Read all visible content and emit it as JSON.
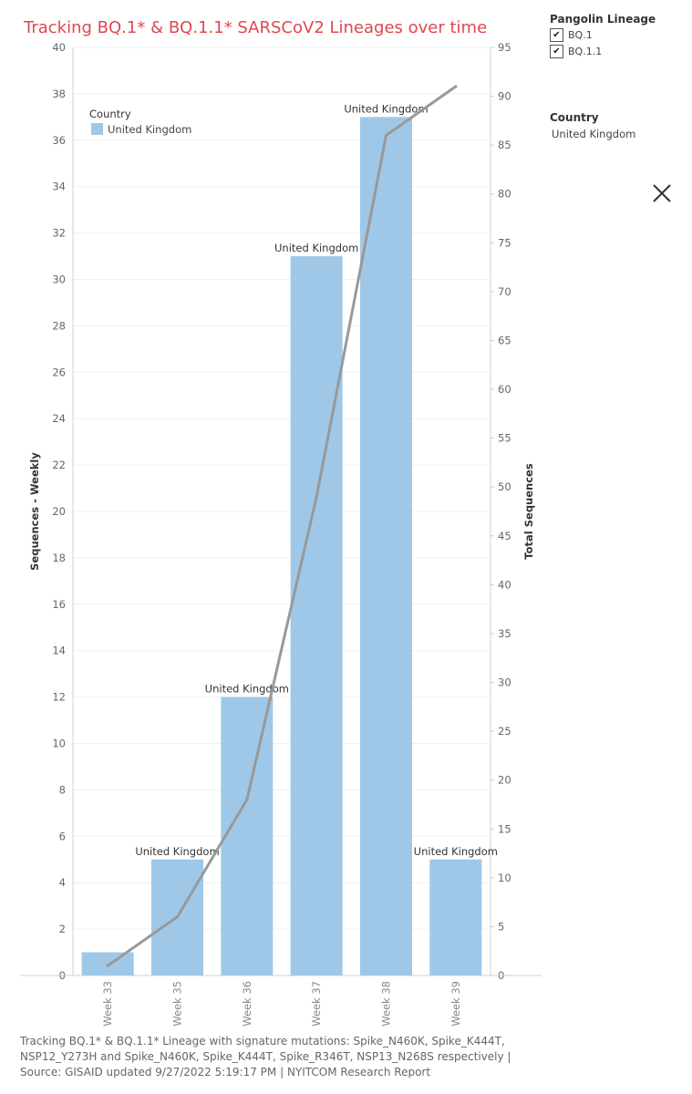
{
  "title": "Tracking BQ.1* & BQ.1.1* SARSCoV2 Lineages over time",
  "lineage_filter": {
    "title": "Pangolin Lineage",
    "items": [
      {
        "label": "BQ.1",
        "checked": true
      },
      {
        "label": "BQ.1.1",
        "checked": true
      }
    ]
  },
  "country_filter": {
    "title": "Country",
    "value": "United Kingdom"
  },
  "footer": {
    "line1": "Tracking BQ.1* & BQ.1.1* Lineage with signature mutations: Spike_N460K, Spike_K444T,",
    "line2": "NSP12_Y273H and Spike_N460K, Spike_K444T, Spike_R346T, NSP13_N268S respectively |",
    "line3": "Source: GISAID updated 9/27/2022 5:19:17 PM | NYITCOM Research Report"
  },
  "chart_data": {
    "type": "bar",
    "categories": [
      "Week 33",
      "Week 35",
      "Week 36",
      "Week 37",
      "Week 38",
      "Week 39"
    ],
    "series": [
      {
        "type": "bar",
        "axis": "left",
        "values": [
          1,
          5,
          12,
          31,
          37,
          5
        ],
        "color": "#9fc8e8"
      },
      {
        "type": "line",
        "axis": "right",
        "values": [
          1,
          6,
          18,
          49,
          86,
          91
        ],
        "color": "#999999"
      }
    ],
    "bar_labels": [
      "",
      "United Kingdom",
      "United Kingdom",
      "United Kingdom",
      "United Kingdom",
      "United Kingdom"
    ],
    "ylabel": "Sequences - Weekly",
    "y2label": "Total  Sequences",
    "ylim": [
      0,
      40
    ],
    "yticks": [
      0,
      2,
      4,
      6,
      8,
      10,
      12,
      14,
      16,
      18,
      20,
      22,
      24,
      26,
      28,
      30,
      32,
      34,
      36,
      38,
      40
    ],
    "y2lim": [
      0,
      95
    ],
    "y2ticks": [
      0,
      5,
      10,
      15,
      20,
      25,
      30,
      35,
      40,
      45,
      50,
      55,
      60,
      65,
      70,
      75,
      80,
      85,
      90,
      95
    ],
    "legend": {
      "title": "Country",
      "entries": [
        {
          "label": "United Kingdom",
          "color": "#9fc8e8"
        }
      ]
    },
    "grid": true
  }
}
